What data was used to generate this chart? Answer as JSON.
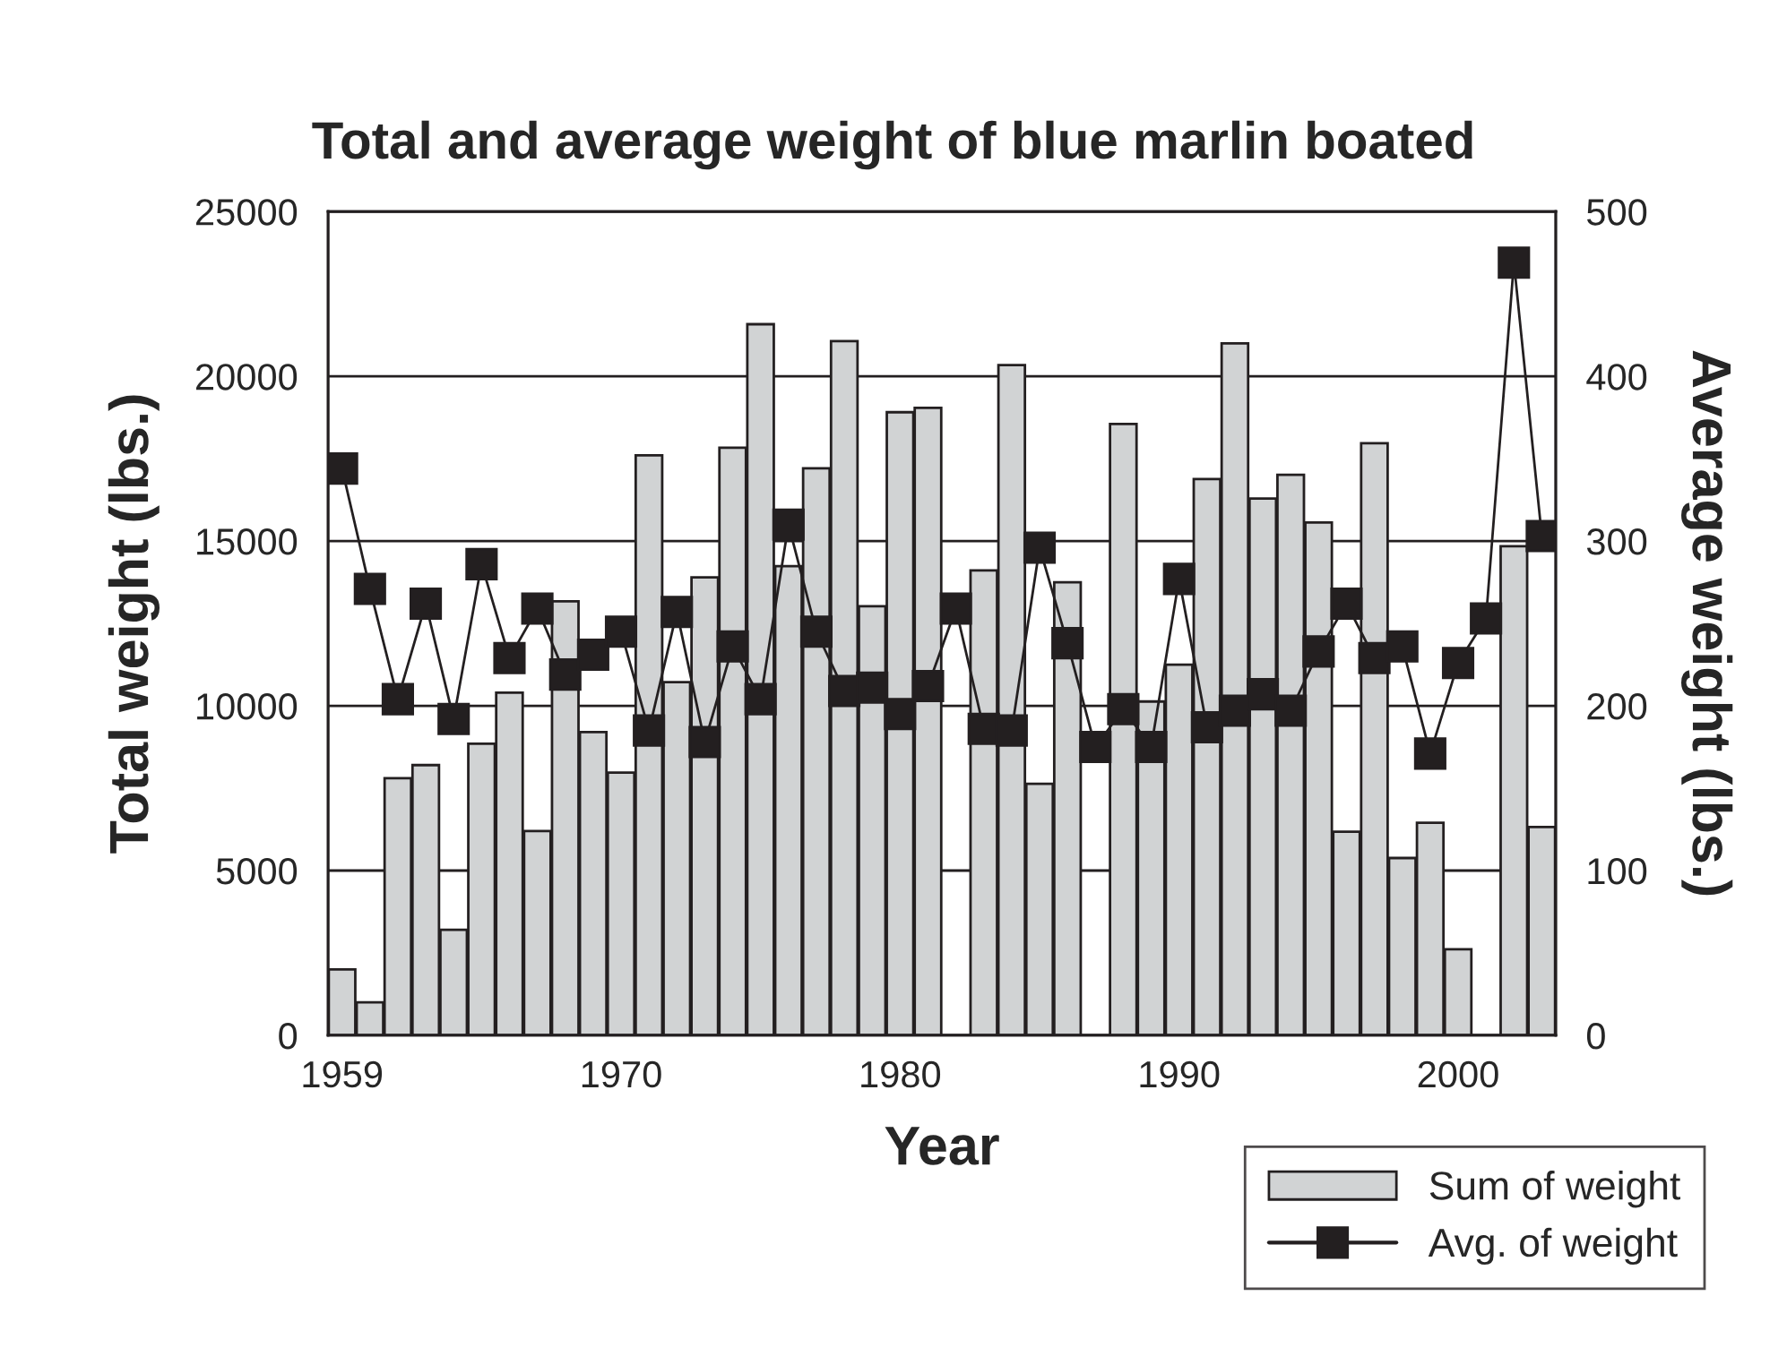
{
  "chart_data": {
    "type": "bar",
    "title": "Total and average weight of blue marlin boated",
    "xlabel": "Year",
    "ylabel": "Total weight (lbs.)",
    "y2label": "Average weight (lbs.)",
    "categories": [
      "1959",
      null,
      null,
      null,
      null,
      null,
      null,
      null,
      null,
      null,
      "1970",
      null,
      null,
      null,
      null,
      null,
      null,
      null,
      null,
      null,
      "1980",
      null,
      null,
      null,
      null,
      null,
      null,
      null,
      null,
      null,
      "1990",
      null,
      null,
      null,
      null,
      null,
      null,
      null,
      null,
      null,
      "2000",
      null,
      null,
      null
    ],
    "series": [
      {
        "name": "Sum of weight",
        "color": "#d1d3d4",
        "values": [
          2000,
          1000,
          7800,
          8200,
          3200,
          8850,
          10400,
          6200,
          13170,
          9200,
          7970,
          17600,
          10720,
          13900,
          17830,
          21580,
          14240,
          17210,
          21070,
          13020,
          18910,
          19040,
          null,
          14110,
          20340,
          7630,
          13750,
          null,
          18550,
          10130,
          11250,
          16880,
          21000,
          16290,
          17010,
          15560,
          6180,
          17970,
          5380,
          6450,
          2610,
          null,
          14840,
          6320
        ]
      },
      {
        "name": "Avg. of weight",
        "type": "line",
        "axis": "y2",
        "color": "#231f20",
        "marker": "square",
        "line_style": "solid",
        "values": [
          344,
          271,
          204,
          262,
          192,
          286,
          229,
          259,
          219,
          231,
          245,
          185,
          257,
          178,
          236,
          204,
          310,
          245,
          209,
          211,
          195,
          212,
          259,
          186,
          185,
          296,
          238,
          175,
          198,
          175,
          277,
          187,
          197,
          207,
          197,
          233,
          262,
          229,
          236,
          171,
          226,
          253,
          469,
          303
        ]
      }
    ],
    "ylim": [
      0,
      25000
    ],
    "yticks": [
      0,
      5000,
      10000,
      15000,
      20000,
      25000
    ],
    "y2lim": [
      0,
      500
    ],
    "y2ticks": [
      0,
      100,
      200,
      300,
      400,
      500
    ],
    "grid": "y",
    "legend": "bottom right"
  }
}
